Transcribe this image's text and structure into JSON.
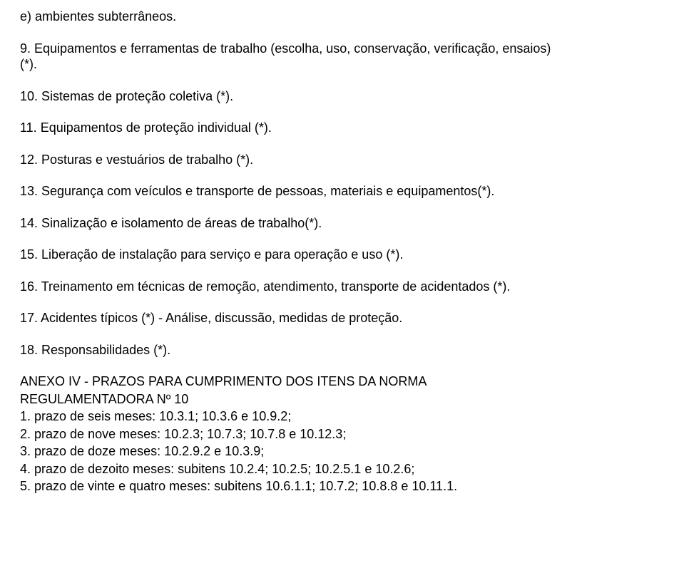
{
  "typography": {
    "font_family": "Arial",
    "font_size_pt": 14,
    "line_color": "#000000",
    "background_color": "#ffffff"
  },
  "items": {
    "e": "e) ambientes subterrâneos.",
    "n9a": "9. Equipamentos e ferramentas de trabalho (escolha, uso, conservação, verificação, ensaios)",
    "n9b": "(*).",
    "n10": "10. Sistemas de proteção coletiva (*).",
    "n11": "11. Equipamentos de proteção individual (*).",
    "n12": "12. Posturas e vestuários de trabalho (*).",
    "n13": "13. Segurança com veículos e transporte de pessoas, materiais e equipamentos(*).",
    "n14": "14. Sinalização e isolamento de áreas de trabalho(*).",
    "n15": "15. Liberação de instalação para serviço e para operação e uso (*).",
    "n16": "16. Treinamento em técnicas de remoção, atendimento, transporte de acidentados (*).",
    "n17": "17. Acidentes típicos (*) - Análise, discussão, medidas de proteção.",
    "n18": "18. Responsabilidades (*)."
  },
  "anexo": {
    "title1": "ANEXO IV - PRAZOS PARA CUMPRIMENTO DOS ITENS DA NORMA",
    "title2": "REGULAMENTADORA Nº 10",
    "l1": "1. prazo de seis meses: 10.3.1; 10.3.6 e 10.9.2;",
    "l2": "2. prazo de nove meses: 10.2.3; 10.7.3; 10.7.8 e 10.12.3;",
    "l3": "3. prazo de doze meses: 10.2.9.2 e 10.3.9;",
    "l4": "4. prazo de dezoito meses: subitens 10.2.4; 10.2.5; 10.2.5.1 e 10.2.6;",
    "l5": "5. prazo de vinte e quatro meses: subitens 10.6.1.1; 10.7.2; 10.8.8 e 10.11.1."
  }
}
